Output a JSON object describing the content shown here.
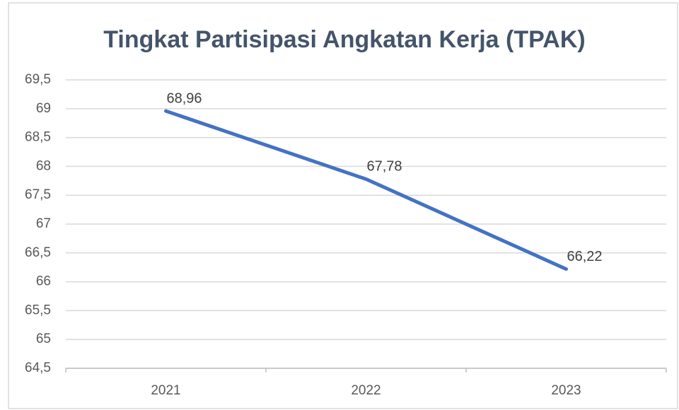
{
  "chart_data": {
    "type": "line",
    "title": "Tingkat Partisipasi Angkatan Kerja (TPAK)",
    "categories": [
      "2021",
      "2022",
      "2023"
    ],
    "values": [
      68.96,
      67.78,
      66.22
    ],
    "value_labels": [
      "68,96",
      "67,78",
      "66,22"
    ],
    "color": "#4472c4",
    "ylim": [
      64.5,
      69.5
    ],
    "yticks": [
      {
        "value": 64.5,
        "label": "64,5"
      },
      65,
      {
        "value": 65.5,
        "label": "65,5"
      },
      66,
      {
        "value": 66.5,
        "label": "66,5"
      },
      67,
      {
        "value": 67.5,
        "label": "67,5"
      },
      68,
      {
        "value": 68.5,
        "label": "68,5"
      },
      69,
      {
        "value": 69.5,
        "label": "69,5"
      }
    ],
    "grid": true
  }
}
